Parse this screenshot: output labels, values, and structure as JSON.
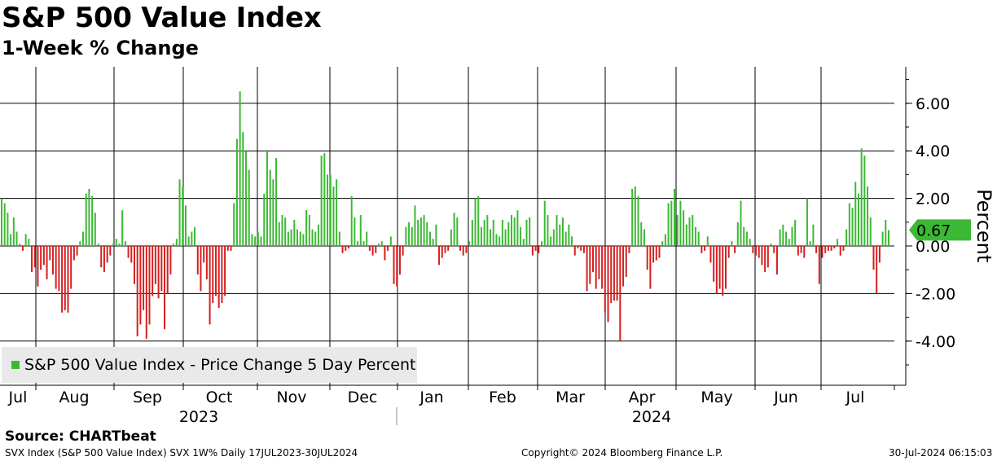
{
  "header": {
    "title": "S&P 500 Value Index",
    "subtitle": "1-Week % Change"
  },
  "legend": {
    "label": "S&P 500 Value Index - Price Change 5 Day Percent"
  },
  "source": "Source: CHARTbeat",
  "footer": {
    "left": "SVX Index (S&P 500 Value Index) SVX 1W%  Daily 17JUL2023-30JUL2024",
    "center": "Copyright© 2024 Bloomberg Finance L.P.",
    "right": "30-Jul-2024 06:15:03"
  },
  "colors": {
    "positive": "#3cb934",
    "negative": "#d42020",
    "label_badge": "#3cb934"
  },
  "chart_data": {
    "type": "bar",
    "title": "S&P 500 Value Index",
    "subtitle": "1-Week % Change",
    "ylabel": "Percent",
    "ylim": [
      -5.8,
      7.4
    ],
    "yticks": [
      -4,
      -2,
      0,
      2,
      4,
      6
    ],
    "ytick_labels": [
      "-4.00",
      "-2.00",
      "0.00",
      "2.00",
      "4.00",
      "6.00"
    ],
    "month_labels": [
      "Jul",
      "Aug",
      "Sep",
      "Oct",
      "Nov",
      "Dec",
      "Jan",
      "Feb",
      "Mar",
      "Apr",
      "May",
      "Jun",
      "Jul"
    ],
    "year_labels": [
      "2023",
      "2024"
    ],
    "last_value_label": "0.67",
    "last_value": 0.67,
    "grid": true,
    "legend_position": "bottom-left",
    "series": [
      {
        "name": "S&P 500 Value Index - Price Change 5 Day Percent",
        "values": [
          2.0,
          1.8,
          1.4,
          0.5,
          1.2,
          0.6,
          0.1,
          -0.2,
          0.5,
          0.3,
          -1.1,
          -0.9,
          -1.7,
          -1.0,
          -0.8,
          -1.4,
          -0.6,
          -1.2,
          -1.8,
          -1.9,
          -2.8,
          -2.7,
          -2.8,
          -1.8,
          -0.6,
          -0.4,
          0.2,
          0.6,
          2.2,
          2.4,
          2.1,
          1.4,
          0.1,
          -0.9,
          -1.1,
          -0.7,
          -0.4,
          0.1,
          0.3,
          0.1,
          1.5,
          0.2,
          -0.5,
          -0.7,
          -1.6,
          -3.8,
          -3.3,
          -2.7,
          -3.9,
          -3.3,
          -2.1,
          -1.6,
          -2.2,
          -1.9,
          -3.5,
          -2.0,
          -1.2,
          0.1,
          0.3,
          2.8,
          2.5,
          1.7,
          0.4,
          0.6,
          0.8,
          -1.2,
          -1.9,
          -0.7,
          -1.4,
          -3.3,
          -2.4,
          -2.1,
          -2.6,
          -2.4,
          -2.1,
          -0.2,
          -0.2,
          1.8,
          4.5,
          6.5,
          4.8,
          4.0,
          3.2,
          0.5,
          0.4,
          0.6,
          0.4,
          2.2,
          4.0,
          3.2,
          2.8,
          3.7,
          1.0,
          1.3,
          1.2,
          0.6,
          0.7,
          1.1,
          0.7,
          0.6,
          0.5,
          1.5,
          1.3,
          0.7,
          0.6,
          0.9,
          3.8,
          3.9,
          3.0,
          3.0,
          2.5,
          2.8,
          0.6,
          -0.3,
          -0.2,
          -0.1,
          2.1,
          1.2,
          0.2,
          1.3,
          0.2,
          0.6,
          -0.2,
          -0.4,
          -0.3,
          0.1,
          0.2,
          -0.6,
          -0.2,
          0.4,
          -1.6,
          -1.7,
          -1.2,
          -0.4,
          0.8,
          1.0,
          0.8,
          1.7,
          1.1,
          1.2,
          1.3,
          1.0,
          0.6,
          0.3,
          0.9,
          -0.8,
          -0.5,
          -0.3,
          -0.2,
          0.7,
          1.4,
          1.2,
          -0.2,
          -0.4,
          -0.3,
          0.2,
          1.1,
          2.0,
          2.1,
          0.8,
          1.1,
          1.3,
          0.7,
          1.1,
          0.5,
          0.4,
          1.1,
          0.7,
          1.0,
          1.3,
          1.2,
          1.5,
          0.8,
          0.3,
          1.1,
          1.2,
          -0.4,
          -0.2,
          -0.3,
          0.2,
          1.9,
          1.3,
          0.4,
          0.7,
          1.3,
          0.9,
          1.2,
          0.6,
          0.9,
          0.4,
          -0.4,
          -0.1,
          -0.2,
          -0.3,
          -1.9,
          -1.6,
          -1.1,
          -1.8,
          -1.4,
          -1.8,
          -2.8,
          -3.2,
          -2.4,
          -2.3,
          -2.3,
          -4.0,
          -1.7,
          -1.3,
          -0.3,
          2.4,
          2.5,
          2.1,
          1.0,
          0.7,
          -1.0,
          -1.8,
          -0.7,
          -0.6,
          -0.5,
          0.2,
          0.5,
          1.8,
          1.9,
          2.4,
          1.3,
          1.9,
          1.5,
          0.9,
          1.2,
          1.3,
          0.8,
          0.6,
          -0.3,
          -0.2,
          0.4,
          -0.7,
          -1.5,
          -2.0,
          -1.8,
          -2.1,
          -1.8,
          -0.5,
          0.2,
          -0.3,
          1.0,
          1.9,
          0.8,
          0.6,
          0.3,
          -0.3,
          -0.4,
          -0.5,
          -0.8,
          -1.1,
          -0.9,
          0.1,
          -0.3,
          -1.2,
          0.7,
          0.9,
          0.6,
          0.3,
          0.8,
          1.1,
          -0.4,
          -0.3,
          -0.5,
          2.0,
          0.2,
          0.9,
          -0.3,
          -1.6,
          -0.5,
          -0.3,
          -0.2,
          -0.2,
          -0.1,
          0.3,
          -0.4,
          -0.2,
          0.7,
          1.8,
          1.6,
          2.7,
          2.2,
          4.1,
          3.8,
          2.5,
          1.2,
          -1.0,
          -2.0,
          -0.7,
          0.6,
          1.1,
          0.67
        ]
      }
    ]
  }
}
